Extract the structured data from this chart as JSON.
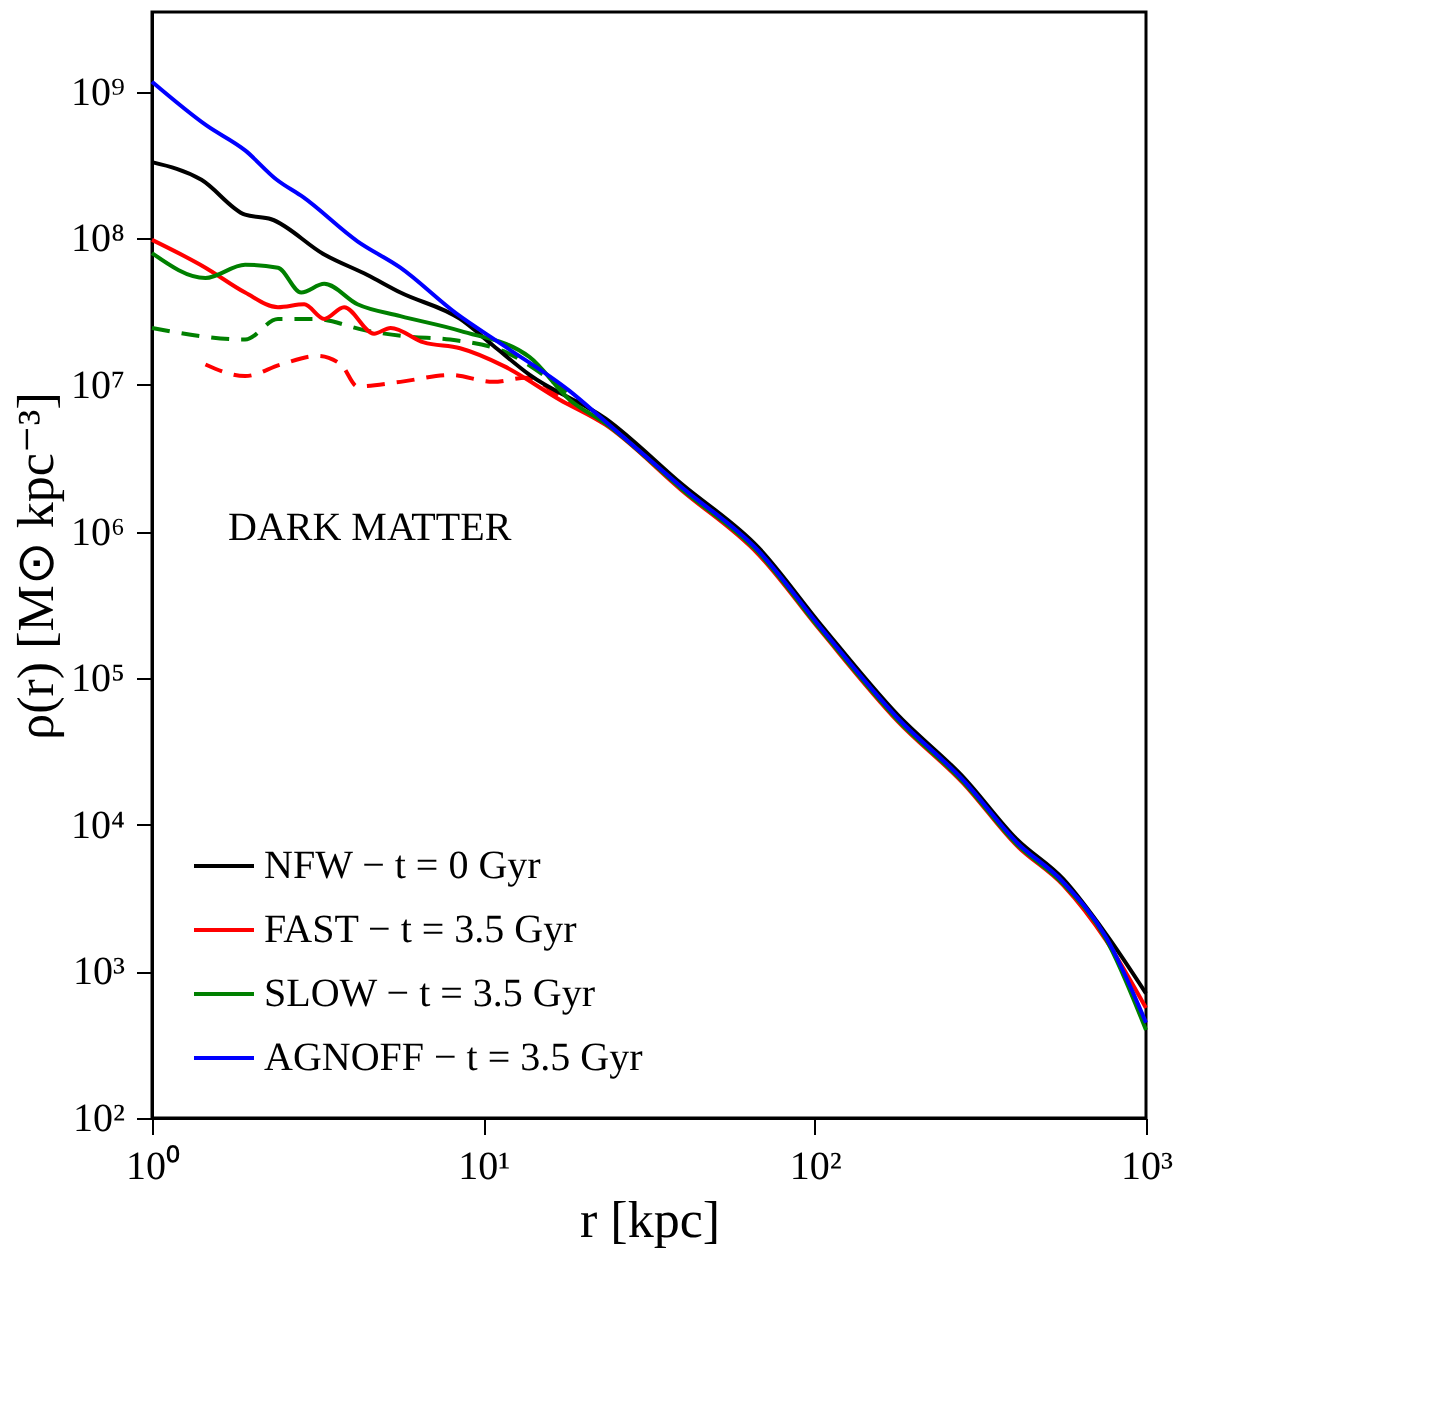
{
  "chart_data": {
    "type": "line",
    "xlabel": "r [kpc]",
    "ylabel": "ρ(r) [M⊙ kpc⁻³]",
    "log": "xy",
    "grid": false,
    "legend": "bottom left",
    "marker": "none",
    "xlim": [
      1,
      1000
    ],
    "ylim": [
      100,
      3500000000
    ],
    "xticks": [
      {
        "value": 1,
        "label": "10⁰"
      },
      {
        "value": 10,
        "label": "10¹"
      },
      {
        "value": 100,
        "label": "10²"
      },
      {
        "value": 1000,
        "label": "10³"
      }
    ],
    "yticks": [
      {
        "value": 100,
        "label": "10²"
      },
      {
        "value": 1000,
        "label": "10³"
      },
      {
        "value": 10000,
        "label": "10⁴"
      },
      {
        "value": 100000,
        "label": "10⁵"
      },
      {
        "value": 1000000,
        "label": "10⁶"
      },
      {
        "value": 10000000,
        "label": "10⁷"
      },
      {
        "value": 100000000,
        "label": "10⁸"
      },
      {
        "value": 1000000000,
        "label": "10⁹"
      }
    ],
    "annotations": [
      "DARK MATTER"
    ],
    "series": [
      {
        "name": "NFW − t = 0 Gyr",
        "color": "#000000",
        "line_style": "solid",
        "x": [
          1,
          1.41,
          1.91,
          2.29,
          3.31,
          4.47,
          5.62,
          8.51,
          10.7,
          13.8,
          23.4,
          39.8,
          67.6,
          104.7,
          177.8,
          281.8,
          407.4,
          562.3,
          758.6,
          1000
        ],
        "values": [
          331000000,
          251000000,
          145000000,
          135000000,
          77600000,
          56200000,
          42700000,
          28200000,
          18600000,
          11700000,
          5900000,
          2100000,
          780000,
          230000,
          56400,
          21000,
          7970,
          4270,
          1790,
          708
        ]
      },
      {
        "name": "FAST − t = 3.5 Gyr",
        "color": "#ff0000",
        "line_style": "solid",
        "x": [
          1,
          1.45,
          1.91,
          2.4,
          2.88,
          3.31,
          3.8,
          4.68,
          5.25,
          6.61,
          8.51,
          11.5,
          17.0,
          23.4,
          39.8,
          67.6,
          104.7,
          177.8,
          281.8,
          407.4,
          562.3,
          758.6,
          1000
        ],
        "values": [
          97700000,
          63100000,
          42700000,
          33900000,
          35500000,
          28200000,
          33900000,
          22400000,
          24500000,
          19500000,
          17800000,
          13500000,
          7940000,
          5340000,
          1900000,
          700000,
          208000,
          51000,
          19000,
          7200,
          3870,
          1620,
          562
        ]
      },
      {
        "name": "SLOW − t = 3.5 Gyr",
        "color": "#008000",
        "line_style": "solid",
        "x": [
          1,
          1.45,
          1.91,
          2.4,
          2.82,
          3.31,
          4.17,
          5.62,
          8.51,
          13.8,
          18.2,
          23.4,
          39.8,
          67.6,
          104.7,
          177.8,
          281.8,
          407.4,
          562.3,
          758.6,
          1000
        ],
        "values": [
          79400000,
          53700000,
          66100000,
          63100000,
          42700000,
          49000000,
          35500000,
          29500000,
          23400000,
          15500000,
          7940000,
          5450000,
          1940000,
          720000,
          212000,
          52000,
          19400,
          7360,
          3950,
          1650,
          398
        ]
      },
      {
        "name": "AGNOFF − t = 3.5 Gyr",
        "color": "#0000ff",
        "line_style": "solid",
        "x": [
          1,
          1.46,
          1.91,
          2.38,
          2.86,
          4.17,
          5.62,
          8.26,
          11.5,
          18.2,
          23.4,
          39.8,
          67.6,
          104.7,
          177.8,
          281.8,
          407.4,
          562.3,
          758.6,
          1000
        ],
        "values": [
          1170000000,
          589000000,
          398000000,
          251000000,
          191000000,
          95500000,
          63100000,
          30900000,
          18600000,
          9120000,
          5620000,
          2000000,
          741000,
          219000,
          53700,
          20000,
          7590,
          4070,
          1700,
          447
        ]
      },
      {
        "color": "#008000",
        "line_style": "dashed",
        "x": [
          1,
          1.91,
          2.4,
          3.09,
          4.47,
          5.89,
          7.94,
          11.5,
          17.0,
          23.4
        ],
        "values": [
          24500000,
          20400000,
          28200000,
          28200000,
          23400000,
          21400000,
          20400000,
          17000000,
          9770000,
          5620000
        ]
      },
      {
        "color": "#ff0000",
        "line_style": "dashed",
        "x": [
          1.45,
          1.91,
          2.45,
          3.16,
          3.72,
          4.17,
          5.62,
          7.94,
          10.7,
          13.5,
          18.2,
          23.4
        ],
        "values": [
          13800000,
          11500000,
          13800000,
          15800000,
          13800000,
          9770000,
          10500000,
          11700000,
          10500000,
          11200000,
          7410000,
          5620000
        ]
      }
    ]
  }
}
